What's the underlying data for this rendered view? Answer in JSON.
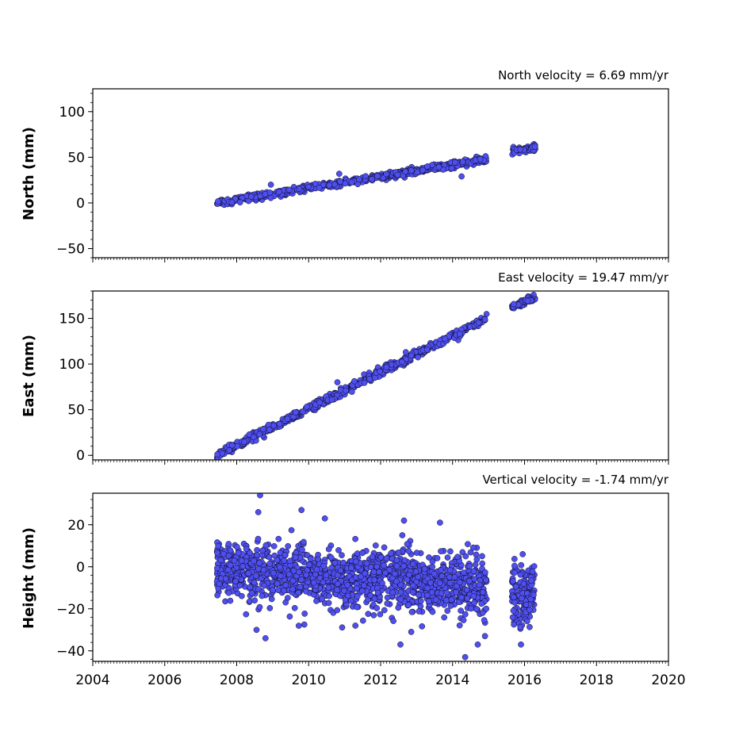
{
  "chart_data": [
    {
      "type": "scatter",
      "title": "North velocity = 6.69 mm/yr",
      "xlabel": "",
      "ylabel": "North (mm)",
      "xlim": [
        2004,
        2020
      ],
      "ylim": [
        -60,
        125
      ],
      "yticks": [
        -50,
        0,
        50,
        100
      ],
      "grid": false,
      "marker_color": "#4f4ff0",
      "marker_edge": "#000000",
      "segments": [
        {
          "t_start": 2007.45,
          "t_end": 2014.95,
          "v_start": 0.0,
          "v_end": 47.5,
          "noise": 1.8,
          "count": 560
        },
        {
          "t_start": 2015.65,
          "t_end": 2016.3,
          "v_start": 57.0,
          "v_end": 61.0,
          "noise": 1.8,
          "count": 55
        }
      ],
      "outliers": [
        {
          "x": 2010.85,
          "y": 32.0
        },
        {
          "x": 2014.25,
          "y": 29.0
        },
        {
          "x": 2008.95,
          "y": 20.0
        },
        {
          "x": 2013.3,
          "y": 40.0
        }
      ]
    },
    {
      "type": "scatter",
      "title": "East velocity = 19.47 mm/yr",
      "xlabel": "",
      "ylabel": "East (mm)",
      "xlim": [
        2004,
        2020
      ],
      "ylim": [
        -5,
        180
      ],
      "yticks": [
        0,
        50,
        100,
        150
      ],
      "grid": false,
      "marker_color": "#4f4ff0",
      "marker_edge": "#000000",
      "segments": [
        {
          "t_start": 2007.45,
          "t_end": 2014.95,
          "v_start": 0.0,
          "v_end": 150.0,
          "noise": 2.2,
          "count": 560
        },
        {
          "t_start": 2015.65,
          "t_end": 2016.3,
          "v_start": 162.0,
          "v_end": 174.0,
          "noise": 2.0,
          "count": 55
        }
      ],
      "outliers": [
        {
          "x": 2010.8,
          "y": 80.0
        },
        {
          "x": 2012.7,
          "y": 113.0
        },
        {
          "x": 2014.2,
          "y": 133.0
        }
      ]
    },
    {
      "type": "scatter",
      "title": "Vertical velocity = -1.74 mm/yr",
      "xlabel": "",
      "ylabel": "Height (mm)",
      "xlim": [
        2004,
        2020
      ],
      "ylim": [
        -45,
        35
      ],
      "yticks": [
        -40,
        -20,
        0,
        20
      ],
      "xticks": [
        2004,
        2006,
        2008,
        2010,
        2012,
        2014,
        2016,
        2018,
        2020
      ],
      "grid": false,
      "marker_color": "#4f4ff0",
      "marker_edge": "#000000",
      "segments": [
        {
          "t_start": 2007.45,
          "t_end": 2014.95,
          "v_start": -1.0,
          "v_end": -10.0,
          "noise": 7.0,
          "count": 1400
        },
        {
          "t_start": 2015.65,
          "t_end": 2016.3,
          "v_start": -14.0,
          "v_end": -12.0,
          "noise": 7.0,
          "count": 150
        }
      ],
      "outliers": [
        {
          "x": 2008.65,
          "y": 34.0
        },
        {
          "x": 2008.6,
          "y": 26.0
        },
        {
          "x": 2009.8,
          "y": 27.0
        },
        {
          "x": 2013.65,
          "y": 21.0
        },
        {
          "x": 2012.65,
          "y": 22.0
        },
        {
          "x": 2008.8,
          "y": -34.0
        },
        {
          "x": 2008.55,
          "y": -30.0
        },
        {
          "x": 2014.35,
          "y": -43.0
        },
        {
          "x": 2012.85,
          "y": -31.0
        },
        {
          "x": 2012.55,
          "y": -37.0
        },
        {
          "x": 2014.9,
          "y": -33.0
        },
        {
          "x": 2014.7,
          "y": -37.0
        },
        {
          "x": 2015.9,
          "y": -37.0
        },
        {
          "x": 2011.3,
          "y": -28.0
        },
        {
          "x": 2010.45,
          "y": 23.0
        },
        {
          "x": 2015.95,
          "y": 6.0
        }
      ]
    }
  ]
}
